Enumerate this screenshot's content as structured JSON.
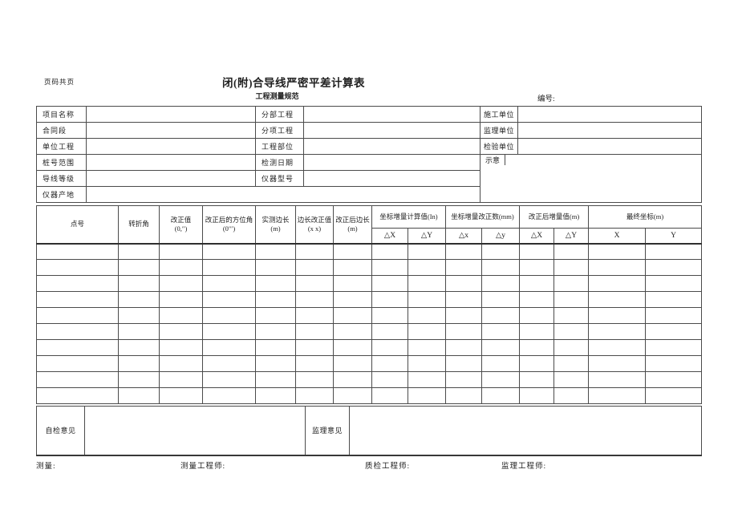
{
  "page": {
    "page_note": "页码共页",
    "title": "闭(附)合导线严密平差计算表",
    "subtitle": "工程测量规范",
    "number_label": "编号:"
  },
  "info_table": {
    "rows": [
      {
        "left_label": "项目名称",
        "left_value": "",
        "mid_label": "分部工程",
        "mid_value": "",
        "right_label": "施工单位",
        "right_value": ""
      },
      {
        "left_label": "合同段",
        "left_value": "",
        "mid_label": "分项工程",
        "mid_value": "",
        "right_label": "监理单位",
        "right_value": ""
      },
      {
        "left_label": "单位工程",
        "left_value": "",
        "mid_label": "工程部位",
        "mid_value": "",
        "right_label": "检验单位",
        "right_value": ""
      },
      {
        "left_label": "桩号范围",
        "left_value": "",
        "mid_label": "检测日期",
        "mid_value": ""
      },
      {
        "left_label": "导线等级",
        "left_value": "",
        "mid_label": "仪器型号",
        "mid_value": ""
      },
      {
        "left_label": "仪器产地",
        "left_value": ""
      }
    ],
    "sketch_label": "示意"
  },
  "main_table": {
    "columns": [
      {
        "label": "点号",
        "sub": ""
      },
      {
        "label": "转折角",
        "sub": ""
      },
      {
        "label": "改正值",
        "sub": "(0,″)"
      },
      {
        "label": "改正后的方位角",
        "sub": "(0′″)"
      },
      {
        "label": "实测边长",
        "sub": "(m)"
      },
      {
        "label": "边长改正值(x x)",
        "sub": ""
      },
      {
        "label": "改正后边长(m)",
        "sub": ""
      }
    ],
    "groups": [
      {
        "label": "坐标增量计算值(In)",
        "subs": [
          "△X",
          "△Y"
        ]
      },
      {
        "label": "坐标增量改正数(mm)",
        "subs": [
          "△x",
          "△y"
        ]
      },
      {
        "label": "改正后增量值(m)",
        "subs": [
          "△X",
          "△Y"
        ]
      },
      {
        "label": "最终坐标(m)",
        "subs": [
          "X",
          "Y"
        ]
      }
    ],
    "empty_rows": 10,
    "total_columns": 15
  },
  "footer": {
    "self_check_label": "自检意见",
    "supervise_label": "监理意见",
    "signatures": [
      "测量:",
      "测量工程师:",
      "质检工程师:",
      "监理工程师:"
    ]
  }
}
